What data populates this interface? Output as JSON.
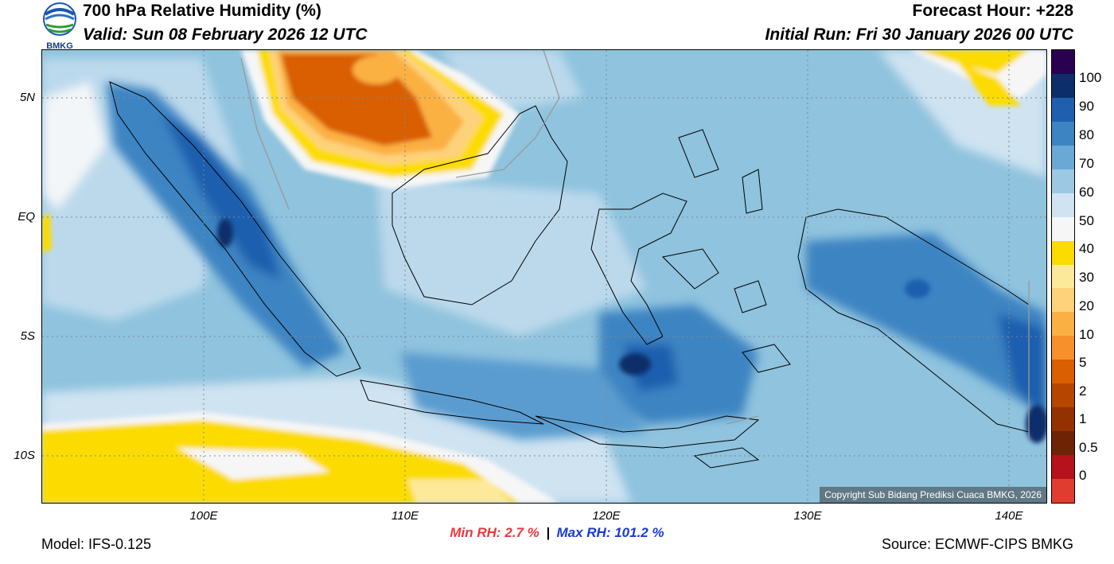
{
  "header": {
    "title": "700 hPa Relative Humidity (%)",
    "valid": "Valid: Sun 08 February 2026 12 UTC",
    "forecast_hour": "Forecast Hour: +228",
    "initial_run": "Initial Run: Fri 30 January 2026 00 UTC",
    "logo_text": "BMKG"
  },
  "map": {
    "lat_labels": [
      "5N",
      "EQ",
      "5S",
      "10S"
    ],
    "lon_labels": [
      "100E",
      "110E",
      "120E",
      "130E",
      "140E"
    ],
    "copyright": "Copyright Sub Bidang Prediksi Cuaca BMKG, 2026",
    "lat_range": [
      -12,
      7
    ],
    "lon_range": [
      92,
      142
    ]
  },
  "colorbar": {
    "labels": [
      "100",
      "90",
      "80",
      "70",
      "60",
      "50",
      "40",
      "30",
      "20",
      "10",
      "5",
      "2",
      "1",
      "0.5",
      "0"
    ],
    "colors": [
      "#2a0050",
      "#0c2f6b",
      "#1f5fae",
      "#3d84c2",
      "#6aa8d6",
      "#9cc8e4",
      "#cfe3f1",
      "#f6f6f6",
      "#fcdc00",
      "#fde99a",
      "#fed27a",
      "#fbb043",
      "#f7902a",
      "#d95f02",
      "#b64500",
      "#933100",
      "#6e2304",
      "#b5121b",
      "#e03d30"
    ]
  },
  "stats": {
    "min_label": "Min RH:   2.7 %",
    "separator": "|",
    "max_label": "Max RH: 101.2 %",
    "min_color": "#e8383d",
    "max_color": "#1a39d8"
  },
  "footer": {
    "model": "Model: IFS-0.125",
    "source": "Source: ECMWF-CIPS BMKG"
  }
}
